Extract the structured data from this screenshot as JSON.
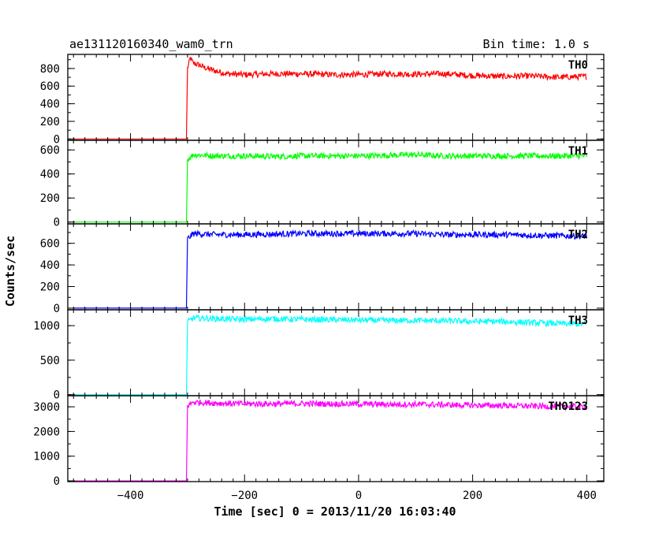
{
  "header": {
    "title": "ae131120160340_wam0_trn",
    "bin_time": "Bin time: 1.0 s"
  },
  "chart_data": {
    "type": "line",
    "title": "ae131120160340_wam0_trn",
    "subtitle": "Bin time: 1.0 s",
    "xlabel": "Time [sec] 0 = 2013/11/20 16:03:40",
    "ylabel": "Counts/sec",
    "xlim": [
      -510,
      430
    ],
    "x_ticks": [
      -400,
      -200,
      0,
      200,
      400
    ],
    "x_tick_labels": [
      "−400",
      "−200",
      "0",
      "200",
      "400"
    ],
    "grid": false,
    "panels": [
      {
        "name": "TH0",
        "color": "#ff0000",
        "ylim": [
          -15,
          960
        ],
        "y_ticks": [
          0,
          200,
          400,
          600,
          800
        ],
        "x": [
          -500,
          -302,
          -300,
          -295,
          -290,
          -280,
          -270,
          -260,
          -250,
          -230,
          -200,
          -150,
          -100,
          -50,
          0,
          50,
          100,
          150,
          200,
          250,
          300,
          350,
          400
        ],
        "y": [
          0,
          0,
          800,
          920,
          860,
          840,
          810,
          790,
          770,
          740,
          730,
          740,
          740,
          730,
          730,
          740,
          735,
          740,
          720,
          710,
          715,
          700,
          710
        ]
      },
      {
        "name": "TH1",
        "color": "#00ff00",
        "ylim": [
          -15,
          680
        ],
        "y_ticks": [
          0,
          200,
          400,
          600
        ],
        "x": [
          -500,
          -302,
          -300,
          -290,
          -250,
          -200,
          -150,
          -100,
          -50,
          0,
          50,
          100,
          150,
          200,
          250,
          300,
          350,
          400
        ],
        "y": [
          0,
          0,
          520,
          560,
          550,
          550,
          545,
          550,
          550,
          550,
          555,
          560,
          550,
          550,
          550,
          550,
          550,
          550
        ]
      },
      {
        "name": "TH2",
        "color": "#0000ff",
        "ylim": [
          -15,
          780
        ],
        "y_ticks": [
          0,
          200,
          400,
          600
        ],
        "x": [
          -500,
          -302,
          -300,
          -290,
          -250,
          -200,
          -150,
          -100,
          -50,
          0,
          50,
          100,
          150,
          200,
          250,
          300,
          350,
          400
        ],
        "y": [
          0,
          0,
          640,
          690,
          680,
          680,
          685,
          690,
          690,
          690,
          690,
          690,
          680,
          680,
          680,
          675,
          670,
          665
        ]
      },
      {
        "name": "TH3",
        "color": "#00ffff",
        "ylim": [
          -15,
          1230
        ],
        "y_ticks": [
          0,
          500,
          1000
        ],
        "x": [
          -500,
          -302,
          -300,
          -290,
          -250,
          -200,
          -150,
          -100,
          -50,
          0,
          50,
          100,
          150,
          200,
          250,
          300,
          350,
          400
        ],
        "y": [
          0,
          0,
          1050,
          1110,
          1100,
          1090,
          1100,
          1090,
          1085,
          1080,
          1075,
          1075,
          1070,
          1060,
          1060,
          1045,
          1030,
          1020
        ]
      },
      {
        "name": "TH0123",
        "color": "#ff00ff",
        "ylim": [
          -30,
          3450
        ],
        "y_ticks": [
          0,
          1000,
          2000,
          3000
        ],
        "x": [
          -500,
          -302,
          -300,
          -290,
          -250,
          -200,
          -150,
          -100,
          -50,
          0,
          50,
          100,
          150,
          200,
          250,
          300,
          350,
          400
        ],
        "y": [
          0,
          0,
          3050,
          3190,
          3150,
          3120,
          3120,
          3130,
          3120,
          3110,
          3100,
          3100,
          3080,
          3060,
          3050,
          3030,
          3010,
          3000
        ]
      }
    ]
  }
}
